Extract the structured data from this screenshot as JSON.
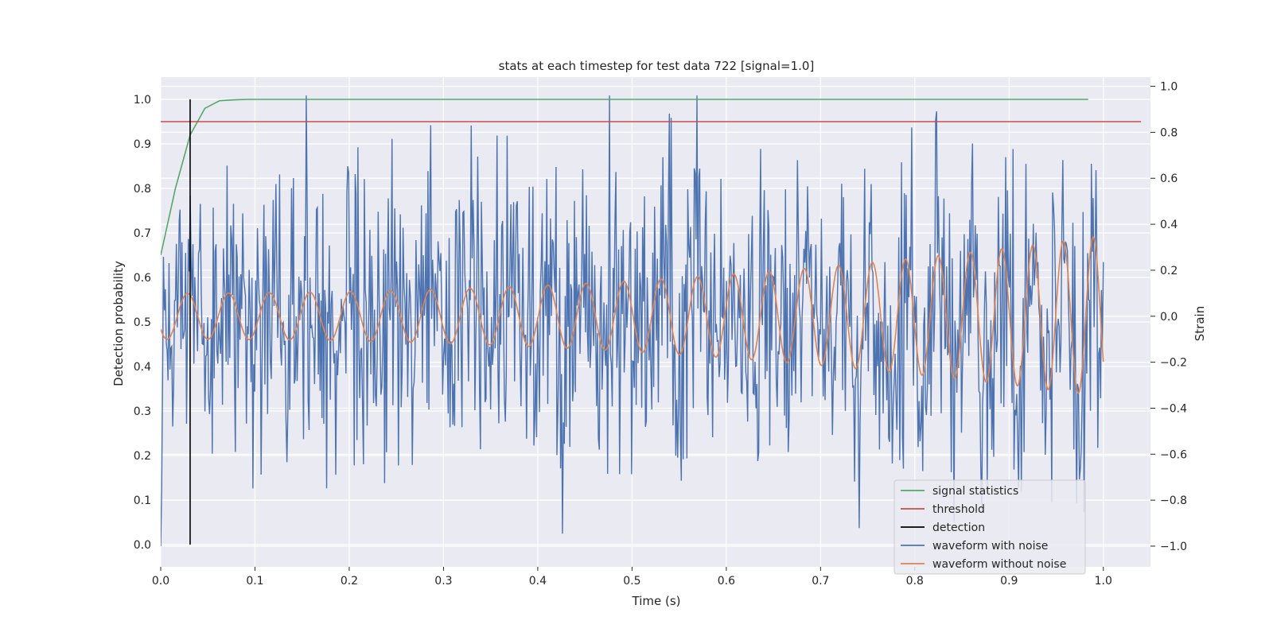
{
  "chart_data": {
    "type": "line",
    "title": "stats at each timestep for test data 722 [signal=1.0]",
    "xlabel": "Time (s)",
    "ylabel_left": "Detection probability",
    "ylabel_right": "Strain",
    "xlim": [
      0.0,
      1.05
    ],
    "ylim_left": [
      -0.05,
      1.05
    ],
    "ylim_right": [
      -1.09,
      1.04
    ],
    "x_ticks": [
      "0.0",
      "0.1",
      "0.2",
      "0.3",
      "0.4",
      "0.5",
      "0.6",
      "0.7",
      "0.8",
      "0.9",
      "1.0"
    ],
    "y_left_ticks": [
      "0.0",
      "0.1",
      "0.2",
      "0.3",
      "0.4",
      "0.5",
      "0.6",
      "0.7",
      "0.8",
      "0.9",
      "1.0"
    ],
    "y_right_ticks": [
      "−1.0",
      "−0.8",
      "−0.6",
      "−0.4",
      "−0.2",
      "0.0",
      "0.2",
      "0.4",
      "0.6",
      "0.8",
      "1.0"
    ],
    "grid": true,
    "legend_position": "lower-right",
    "background": "#eaeaf2",
    "series": [
      {
        "name": "signal statistics",
        "axis": "left",
        "color": "#55a868",
        "x": [
          0.0,
          0.0156,
          0.0312,
          0.0469,
          0.0625,
          0.0781,
          0.0938,
          0.2,
          0.4,
          0.6,
          0.8,
          0.984
        ],
        "y": [
          0.65,
          0.8,
          0.92,
          0.98,
          0.997,
          0.999,
          1.0,
          1.0,
          1.0,
          1.0,
          1.0,
          1.0
        ]
      },
      {
        "name": "threshold",
        "axis": "left",
        "color": "#c44e52",
        "x": [
          0.0,
          1.04
        ],
        "y": [
          0.95,
          0.95
        ]
      },
      {
        "name": "detection",
        "axis": "left",
        "color": "#000000",
        "x": [
          0.0312,
          0.0312
        ],
        "y": [
          0.0,
          1.0
        ]
      },
      {
        "name": "waveform with noise",
        "axis": "right",
        "color": "#4c72b0",
        "x": [],
        "y": []
      },
      {
        "name": "waveform without noise",
        "axis": "right",
        "color": "#dd8452",
        "x": [],
        "y": []
      }
    ]
  }
}
